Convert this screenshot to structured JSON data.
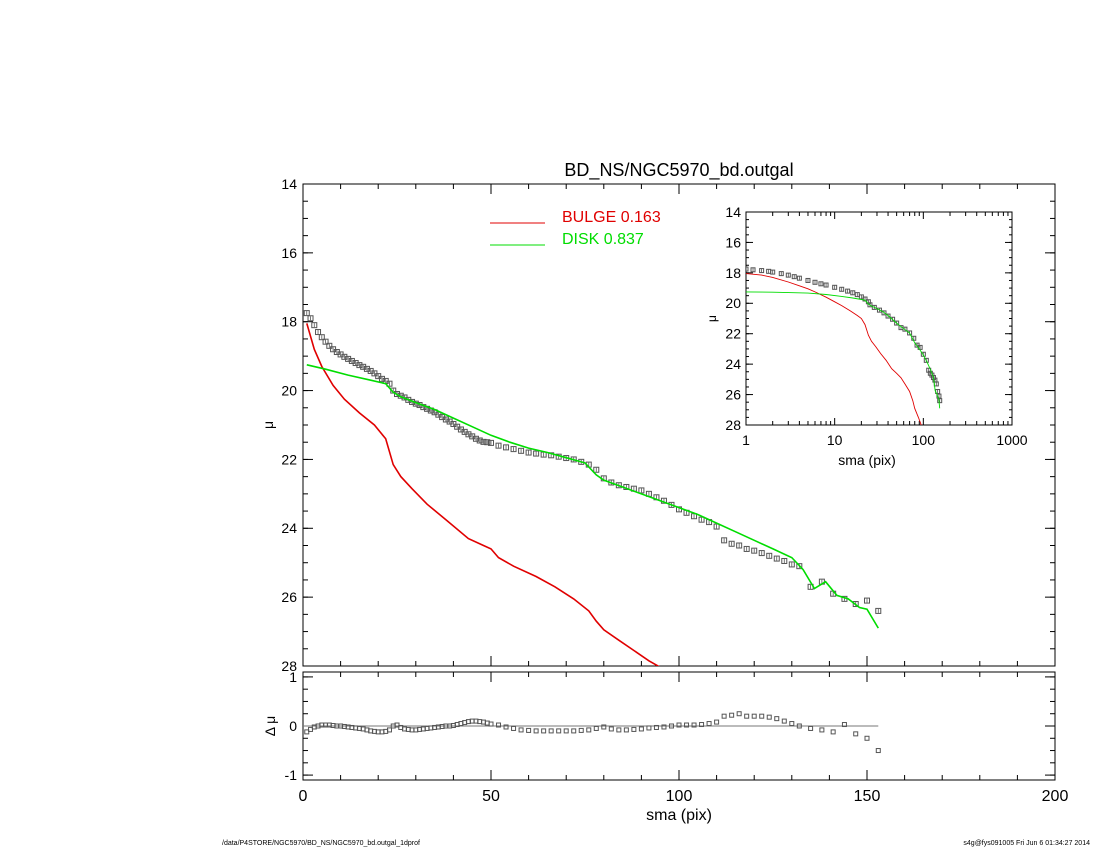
{
  "page": {
    "footer_left": "/data/P4STORE/NGC5970/BD_NS/NGC5970_bd.outgal_1dprof",
    "footer_right": "s4g@fys091005  Fri Jun  6 01:34:27 2014"
  },
  "colors": {
    "bulge": "#e00000",
    "disk": "#00dd00",
    "data": "#555555",
    "axes": "#000000"
  },
  "chart_data": [
    {
      "id": "main",
      "type": "line",
      "title": "BD_NS/NGC5970_bd.outgal",
      "xlabel": "",
      "ylabel": "μ",
      "xlim": [
        0,
        200
      ],
      "ylim": [
        28,
        14
      ],
      "yticks": [
        14,
        16,
        18,
        20,
        22,
        24,
        26,
        28
      ],
      "legend": [
        {
          "name": "BULGE",
          "value": "0.163",
          "color": "#e00000"
        },
        {
          "name": "DISK",
          "value": "0.837",
          "color": "#00dd00"
        }
      ],
      "legend_position": "top-center",
      "series": [
        {
          "name": "data",
          "style": "points",
          "x": [
            1,
            2,
            3,
            4,
            5,
            6,
            7,
            8,
            9,
            10,
            11,
            12,
            13,
            14,
            15,
            16,
            17,
            18,
            19,
            20,
            21,
            22,
            23,
            24,
            25,
            26,
            27,
            28,
            29,
            30,
            31,
            32,
            33,
            34,
            35,
            36,
            37,
            38,
            39,
            40,
            41,
            42,
            43,
            44,
            45,
            46,
            47,
            48,
            49,
            50,
            52,
            54,
            56,
            58,
            60,
            62,
            64,
            66,
            68,
            70,
            72,
            74,
            76,
            78,
            80,
            82,
            84,
            86,
            88,
            90,
            92,
            94,
            96,
            98,
            100,
            102,
            104,
            106,
            108,
            110,
            112,
            114,
            116,
            118,
            120,
            122,
            124,
            126,
            128,
            130,
            132,
            135,
            138,
            141,
            144,
            147,
            150,
            153
          ],
          "y": [
            17.75,
            17.9,
            18.1,
            18.3,
            18.45,
            18.58,
            18.7,
            18.8,
            18.88,
            18.95,
            19.02,
            19.08,
            19.14,
            19.2,
            19.26,
            19.31,
            19.37,
            19.43,
            19.5,
            19.58,
            19.66,
            19.72,
            19.8,
            20.0,
            20.1,
            20.15,
            20.2,
            20.27,
            20.33,
            20.38,
            20.42,
            20.48,
            20.53,
            20.58,
            20.63,
            20.7,
            20.77,
            20.84,
            20.9,
            20.97,
            21.05,
            21.13,
            21.2,
            21.27,
            21.33,
            21.4,
            21.45,
            21.49,
            21.5,
            21.52,
            21.6,
            21.65,
            21.7,
            21.75,
            21.8,
            21.83,
            21.86,
            21.88,
            21.92,
            21.96,
            22.0,
            22.07,
            22.15,
            22.3,
            22.55,
            22.67,
            22.75,
            22.8,
            22.85,
            22.9,
            23.0,
            23.1,
            23.2,
            23.32,
            23.45,
            23.55,
            23.65,
            23.75,
            23.82,
            23.95,
            24.35,
            24.45,
            24.5,
            24.6,
            24.65,
            24.72,
            24.8,
            24.88,
            24.95,
            25.05,
            25.1,
            25.7,
            25.55,
            25.9,
            26.05,
            26.2,
            26.1,
            26.4
          ]
        },
        {
          "name": "BULGE",
          "style": "line",
          "color": "#e00000",
          "x": [
            1,
            3,
            5,
            8,
            11,
            15,
            19,
            22,
            24,
            26,
            29,
            33,
            38,
            44,
            48,
            50,
            52,
            56,
            62,
            67,
            72,
            76,
            78,
            80,
            84,
            88,
            92,
            96
          ],
          "y": [
            18.05,
            18.8,
            19.3,
            19.85,
            20.25,
            20.65,
            21.0,
            21.4,
            22.15,
            22.5,
            22.85,
            23.3,
            23.75,
            24.3,
            24.5,
            24.6,
            24.85,
            25.1,
            25.4,
            25.7,
            26.05,
            26.4,
            26.7,
            26.95,
            27.25,
            27.55,
            27.85,
            28.1
          ]
        },
        {
          "name": "DISK",
          "style": "line",
          "color": "#00dd00",
          "x": [
            1,
            6,
            12,
            18,
            22,
            24,
            26,
            30,
            35,
            40,
            45,
            50,
            55,
            60,
            65,
            70,
            75,
            78,
            80,
            85,
            90,
            95,
            100,
            105,
            110,
            115,
            120,
            125,
            130,
            133,
            136,
            139,
            142,
            145,
            148,
            150,
            153
          ],
          "y": [
            19.25,
            19.38,
            19.55,
            19.7,
            19.8,
            20.05,
            20.18,
            20.35,
            20.55,
            20.8,
            21.05,
            21.3,
            21.5,
            21.67,
            21.8,
            21.95,
            22.1,
            22.45,
            22.6,
            22.8,
            23.0,
            23.2,
            23.4,
            23.6,
            23.85,
            24.1,
            24.35,
            24.6,
            24.85,
            25.2,
            25.75,
            25.55,
            25.95,
            26.05,
            26.3,
            26.35,
            26.9
          ]
        }
      ]
    },
    {
      "id": "residual",
      "type": "scatter",
      "xlabel": "sma (pix)",
      "ylabel": "Δ μ",
      "xlim": [
        0,
        200
      ],
      "ylim": [
        -1.1,
        1.1
      ],
      "xticks": [
        0,
        50,
        100,
        150,
        200
      ],
      "yticks": [
        -1,
        0,
        1
      ],
      "series": [
        {
          "name": "residual",
          "x": [
            1,
            2,
            3,
            4,
            5,
            6,
            7,
            8,
            9,
            10,
            11,
            12,
            13,
            14,
            15,
            16,
            17,
            18,
            19,
            20,
            21,
            22,
            23,
            24,
            25,
            26,
            27,
            28,
            29,
            30,
            31,
            32,
            33,
            34,
            35,
            36,
            37,
            38,
            39,
            40,
            41,
            42,
            43,
            44,
            45,
            46,
            47,
            48,
            49,
            50,
            52,
            54,
            56,
            58,
            60,
            62,
            64,
            66,
            68,
            70,
            72,
            74,
            76,
            78,
            80,
            82,
            84,
            86,
            88,
            90,
            92,
            94,
            96,
            98,
            100,
            102,
            104,
            106,
            108,
            110,
            112,
            114,
            116,
            118,
            120,
            122,
            124,
            126,
            128,
            130,
            132,
            135,
            138,
            141,
            144,
            147,
            150,
            153
          ],
          "y": [
            -0.12,
            -0.07,
            -0.02,
            0.0,
            0.02,
            0.02,
            0.02,
            0.01,
            0.0,
            0.0,
            -0.01,
            -0.02,
            -0.03,
            -0.04,
            -0.05,
            -0.06,
            -0.08,
            -0.1,
            -0.11,
            -0.12,
            -0.12,
            -0.11,
            -0.08,
            0.0,
            0.02,
            -0.03,
            -0.06,
            -0.07,
            -0.08,
            -0.08,
            -0.07,
            -0.06,
            -0.05,
            -0.04,
            -0.03,
            -0.02,
            -0.01,
            0.0,
            0.0,
            0.01,
            0.03,
            0.05,
            0.07,
            0.09,
            0.1,
            0.1,
            0.09,
            0.08,
            0.06,
            0.04,
            0.02,
            -0.02,
            -0.05,
            -0.08,
            -0.09,
            -0.1,
            -0.1,
            -0.1,
            -0.1,
            -0.1,
            -0.1,
            -0.09,
            -0.08,
            -0.05,
            -0.02,
            -0.06,
            -0.08,
            -0.08,
            -0.07,
            -0.06,
            -0.04,
            -0.03,
            -0.02,
            0.0,
            0.02,
            0.02,
            0.02,
            0.03,
            0.05,
            0.08,
            0.2,
            0.22,
            0.25,
            0.2,
            0.2,
            0.2,
            0.18,
            0.15,
            0.1,
            0.05,
            0.0,
            -0.05,
            -0.08,
            -0.12,
            0.03,
            -0.16,
            -0.25,
            -0.5
          ]
        }
      ]
    },
    {
      "id": "inset",
      "type": "line",
      "xlabel": "sma (pix)",
      "ylabel": "μ",
      "xscale": "log",
      "xlim": [
        1,
        1000
      ],
      "ylim": [
        28,
        14
      ],
      "xticks": [
        1,
        10,
        100,
        1000
      ],
      "xtick_labels": [
        "1",
        "10",
        "100",
        "1000"
      ],
      "yticks": [
        14,
        16,
        18,
        20,
        22,
        24,
        26,
        28
      ],
      "series": [
        {
          "name": "data",
          "style": "points",
          "x": [
            1,
            1.2,
            1.5,
            1.8,
            2,
            2.5,
            3,
            3.5,
            4,
            5,
            6,
            7,
            8,
            10,
            12,
            14,
            16,
            18,
            20,
            22,
            24,
            25,
            28,
            32,
            36,
            40,
            45,
            50,
            56,
            62,
            70,
            78,
            85,
            92,
            100,
            108,
            115,
            120,
            125,
            130,
            135,
            140,
            145,
            150,
            153
          ],
          "y": [
            17.75,
            17.8,
            17.85,
            17.9,
            17.95,
            18.05,
            18.15,
            18.25,
            18.35,
            18.5,
            18.62,
            18.72,
            18.8,
            18.95,
            19.08,
            19.2,
            19.31,
            19.43,
            19.58,
            19.72,
            19.9,
            20.1,
            20.27,
            20.45,
            20.63,
            20.84,
            21.05,
            21.3,
            21.6,
            21.7,
            21.95,
            22.3,
            22.75,
            22.9,
            23.35,
            23.75,
            24.4,
            24.6,
            24.72,
            24.88,
            25.05,
            25.3,
            25.8,
            26.1,
            26.4
          ]
        },
        {
          "name": "BULGE",
          "style": "line",
          "color": "#e00000",
          "x": [
            1,
            1.5,
            2,
            3,
            4,
            5,
            6,
            8,
            10,
            12,
            15,
            18,
            20,
            22,
            24,
            26,
            29,
            33,
            38,
            44,
            50,
            56,
            62,
            70,
            76,
            80,
            88,
            96
          ],
          "y": [
            18.05,
            18.15,
            18.3,
            18.6,
            18.85,
            19.05,
            19.25,
            19.6,
            19.9,
            20.15,
            20.5,
            20.8,
            21.0,
            21.4,
            22.1,
            22.5,
            22.85,
            23.3,
            23.75,
            24.3,
            24.6,
            24.9,
            25.3,
            25.8,
            26.4,
            26.9,
            27.5,
            28.1
          ]
        },
        {
          "name": "DISK",
          "style": "line",
          "color": "#00dd00",
          "x": [
            1,
            2,
            3,
            5,
            8,
            12,
            16,
            20,
            22,
            24,
            26,
            30,
            35,
            40,
            50,
            60,
            70,
            80,
            90,
            100,
            110,
            120,
            130,
            136,
            142,
            150,
            153
          ],
          "y": [
            19.25,
            19.27,
            19.3,
            19.33,
            19.42,
            19.55,
            19.65,
            19.75,
            19.8,
            20.05,
            20.18,
            20.35,
            20.55,
            20.8,
            21.3,
            21.67,
            21.95,
            22.6,
            23.0,
            23.4,
            23.85,
            24.35,
            24.85,
            25.75,
            25.95,
            26.35,
            26.9
          ]
        }
      ]
    }
  ]
}
